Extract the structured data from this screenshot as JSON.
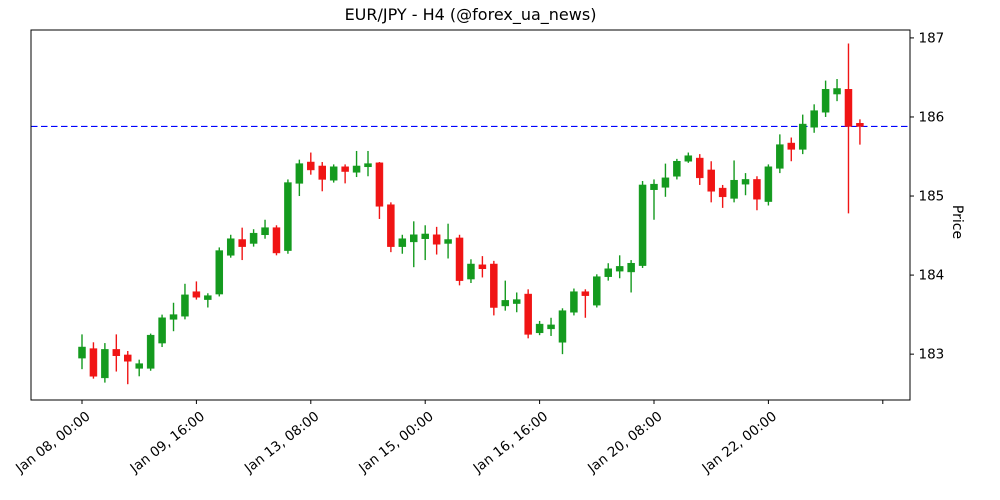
{
  "figure": {
    "title": "EUR/JPY - H4 (@forex_ua_news)",
    "ylabel": "Price"
  },
  "chart_data": {
    "type": "candlestick",
    "symbol": "EUR/JPY",
    "timeframe": "H4",
    "title": "EUR/JPY - H4 (@forex_ua_news)",
    "ylabel": "Price",
    "ylim": [
      182.42,
      187.1
    ],
    "y_ticks": [
      183,
      184,
      185,
      186,
      187
    ],
    "x_ticks": [
      {
        "index": 0,
        "label": "Jan 08, 00:00"
      },
      {
        "index": 10,
        "label": "Jan 09, 16:00"
      },
      {
        "index": 20,
        "label": "Jan 13, 08:00"
      },
      {
        "index": 30,
        "label": "Jan 15, 00:00"
      },
      {
        "index": 40,
        "label": "Jan 16, 16:00"
      },
      {
        "index": 50,
        "label": "Jan 20, 08:00"
      },
      {
        "index": 60,
        "label": "Jan 22, 00:00"
      },
      {
        "index": 70,
        "label": ""
      }
    ],
    "grid": false,
    "legend": null,
    "reference_line": {
      "price": 185.88,
      "color": "#0000ff",
      "style": "dashed"
    },
    "up_color": "#149a1e",
    "down_color": "#f01414",
    "candles": {
      "columns": [
        "time",
        "open",
        "high",
        "low",
        "close"
      ],
      "rows": [
        [
          "Jan 08 00:00",
          182.95,
          183.25,
          182.81,
          183.09
        ],
        [
          "Jan 08 04:00",
          183.07,
          183.15,
          182.69,
          182.72
        ],
        [
          "Jan 08 08:00",
          182.7,
          183.14,
          182.64,
          183.06
        ],
        [
          "Jan 08 12:00",
          183.06,
          183.25,
          182.78,
          182.98
        ],
        [
          "Jan 08 16:00",
          182.99,
          183.04,
          182.62,
          182.91
        ],
        [
          "Jan 08 20:00",
          182.82,
          182.93,
          182.72,
          182.88
        ],
        [
          "Jan 09 00:00",
          182.82,
          183.26,
          182.79,
          183.24
        ],
        [
          "Jan 09 04:00",
          183.14,
          183.5,
          183.09,
          183.46
        ],
        [
          "Jan 09 08:00",
          183.44,
          183.65,
          183.29,
          183.5
        ],
        [
          "Jan 09 12:00",
          183.48,
          183.89,
          183.44,
          183.75
        ],
        [
          "Jan 09 16:00",
          183.79,
          183.92,
          183.69,
          183.72
        ],
        [
          "Jan 09 20:00",
          183.69,
          183.77,
          183.59,
          183.74
        ],
        [
          "Jan 10 00:00",
          183.76,
          184.35,
          183.73,
          184.31
        ],
        [
          "Jan 10 04:00",
          184.25,
          184.51,
          184.22,
          184.46
        ],
        [
          "Jan 10 08:00",
          184.45,
          184.6,
          184.19,
          184.36
        ],
        [
          "Jan 10 12:00",
          184.4,
          184.58,
          184.36,
          184.53
        ],
        [
          "Jan 10 16:00",
          184.51,
          184.7,
          184.46,
          184.6
        ],
        [
          "Jan 10 20:00",
          184.6,
          184.63,
          184.25,
          184.28
        ],
        [
          "Jan 13 00:00",
          184.31,
          185.21,
          184.27,
          185.17
        ],
        [
          "Jan 13 04:00",
          185.16,
          185.46,
          185.0,
          185.41
        ],
        [
          "Jan 13 08:00",
          185.43,
          185.55,
          185.27,
          185.33
        ],
        [
          "Jan 13 12:00",
          185.38,
          185.43,
          185.06,
          185.21
        ],
        [
          "Jan 13 16:00",
          185.2,
          185.4,
          185.17,
          185.37
        ],
        [
          "Jan 13 20:00",
          185.37,
          185.4,
          185.16,
          185.31
        ],
        [
          "Jan 14 00:00",
          185.3,
          185.57,
          185.24,
          185.38
        ],
        [
          "Jan 14 04:00",
          185.37,
          185.57,
          185.25,
          185.41
        ],
        [
          "Jan 14 08:00",
          185.42,
          185.43,
          184.71,
          184.87
        ],
        [
          "Jan 14 12:00",
          184.89,
          184.92,
          184.29,
          184.36
        ],
        [
          "Jan 14 16:00",
          184.36,
          184.51,
          184.27,
          184.46
        ],
        [
          "Jan 14 20:00",
          184.42,
          184.68,
          184.1,
          184.51
        ],
        [
          "Jan 15 00:00",
          184.46,
          184.63,
          184.19,
          184.52
        ],
        [
          "Jan 15 04:00",
          184.51,
          184.61,
          184.26,
          184.39
        ],
        [
          "Jan 15 08:00",
          184.4,
          184.65,
          184.21,
          184.45
        ],
        [
          "Jan 15 12:00",
          184.47,
          184.51,
          183.87,
          183.93
        ],
        [
          "Jan 15 16:00",
          183.95,
          184.2,
          183.9,
          184.14
        ],
        [
          "Jan 15 20:00",
          184.13,
          184.24,
          183.97,
          184.08
        ],
        [
          "Jan 16 00:00",
          184.14,
          184.18,
          183.49,
          183.59
        ],
        [
          "Jan 16 04:00",
          183.61,
          183.93,
          183.55,
          183.68
        ],
        [
          "Jan 16 08:00",
          183.64,
          183.78,
          183.53,
          183.69
        ],
        [
          "Jan 16 12:00",
          183.76,
          183.82,
          183.2,
          183.25
        ],
        [
          "Jan 16 16:00",
          183.27,
          183.42,
          183.24,
          183.38
        ],
        [
          "Jan 16 20:00",
          183.32,
          183.46,
          183.23,
          183.37
        ],
        [
          "Jan 17 00:00",
          183.15,
          183.58,
          183.0,
          183.55
        ],
        [
          "Jan 17 04:00",
          183.53,
          183.83,
          183.49,
          183.79
        ],
        [
          "Jan 17 08:00",
          183.79,
          183.82,
          183.46,
          183.74
        ],
        [
          "Jan 17 12:00",
          183.62,
          184.01,
          183.59,
          183.98
        ],
        [
          "Jan 17 16:00",
          183.98,
          184.15,
          183.93,
          184.08
        ],
        [
          "Jan 17 20:00",
          184.05,
          184.25,
          183.96,
          184.11
        ],
        [
          "Jan 20 00:00",
          184.04,
          184.19,
          183.78,
          184.15
        ],
        [
          "Jan 20 04:00",
          184.12,
          185.19,
          184.09,
          185.14
        ],
        [
          "Jan 20 08:00",
          185.08,
          185.21,
          184.7,
          185.15
        ],
        [
          "Jan 20 12:00",
          185.11,
          185.41,
          184.99,
          185.23
        ],
        [
          "Jan 20 16:00",
          185.25,
          185.47,
          185.21,
          185.44
        ],
        [
          "Jan 20 20:00",
          185.44,
          185.55,
          185.42,
          185.51
        ],
        [
          "Jan 21 00:00",
          185.48,
          185.53,
          185.14,
          185.23
        ],
        [
          "Jan 21 04:00",
          185.33,
          185.44,
          184.92,
          185.06
        ],
        [
          "Jan 21 08:00",
          185.1,
          185.14,
          184.85,
          184.99
        ],
        [
          "Jan 21 12:00",
          184.97,
          185.45,
          184.92,
          185.2
        ],
        [
          "Jan 21 16:00",
          185.15,
          185.29,
          185.01,
          185.21
        ],
        [
          "Jan 21 20:00",
          185.21,
          185.25,
          184.82,
          184.96
        ],
        [
          "Jan 22 00:00",
          184.93,
          185.4,
          184.88,
          185.37
        ],
        [
          "Jan 22 04:00",
          185.35,
          185.78,
          185.29,
          185.65
        ],
        [
          "Jan 22 08:00",
          185.67,
          185.74,
          185.44,
          185.59
        ],
        [
          "Jan 22 12:00",
          185.59,
          186.03,
          185.53,
          185.91
        ],
        [
          "Jan 22 16:00",
          185.87,
          186.16,
          185.8,
          186.08
        ],
        [
          "Jan 22 20:00",
          186.06,
          186.46,
          186.0,
          186.35
        ],
        [
          "Jan 23 00:00",
          186.29,
          186.48,
          186.2,
          186.36
        ],
        [
          "Jan 23 04:00",
          186.35,
          186.93,
          184.78,
          185.88
        ],
        [
          "Jan 23 08:00",
          185.92,
          185.97,
          185.65,
          185.88
        ]
      ]
    }
  }
}
